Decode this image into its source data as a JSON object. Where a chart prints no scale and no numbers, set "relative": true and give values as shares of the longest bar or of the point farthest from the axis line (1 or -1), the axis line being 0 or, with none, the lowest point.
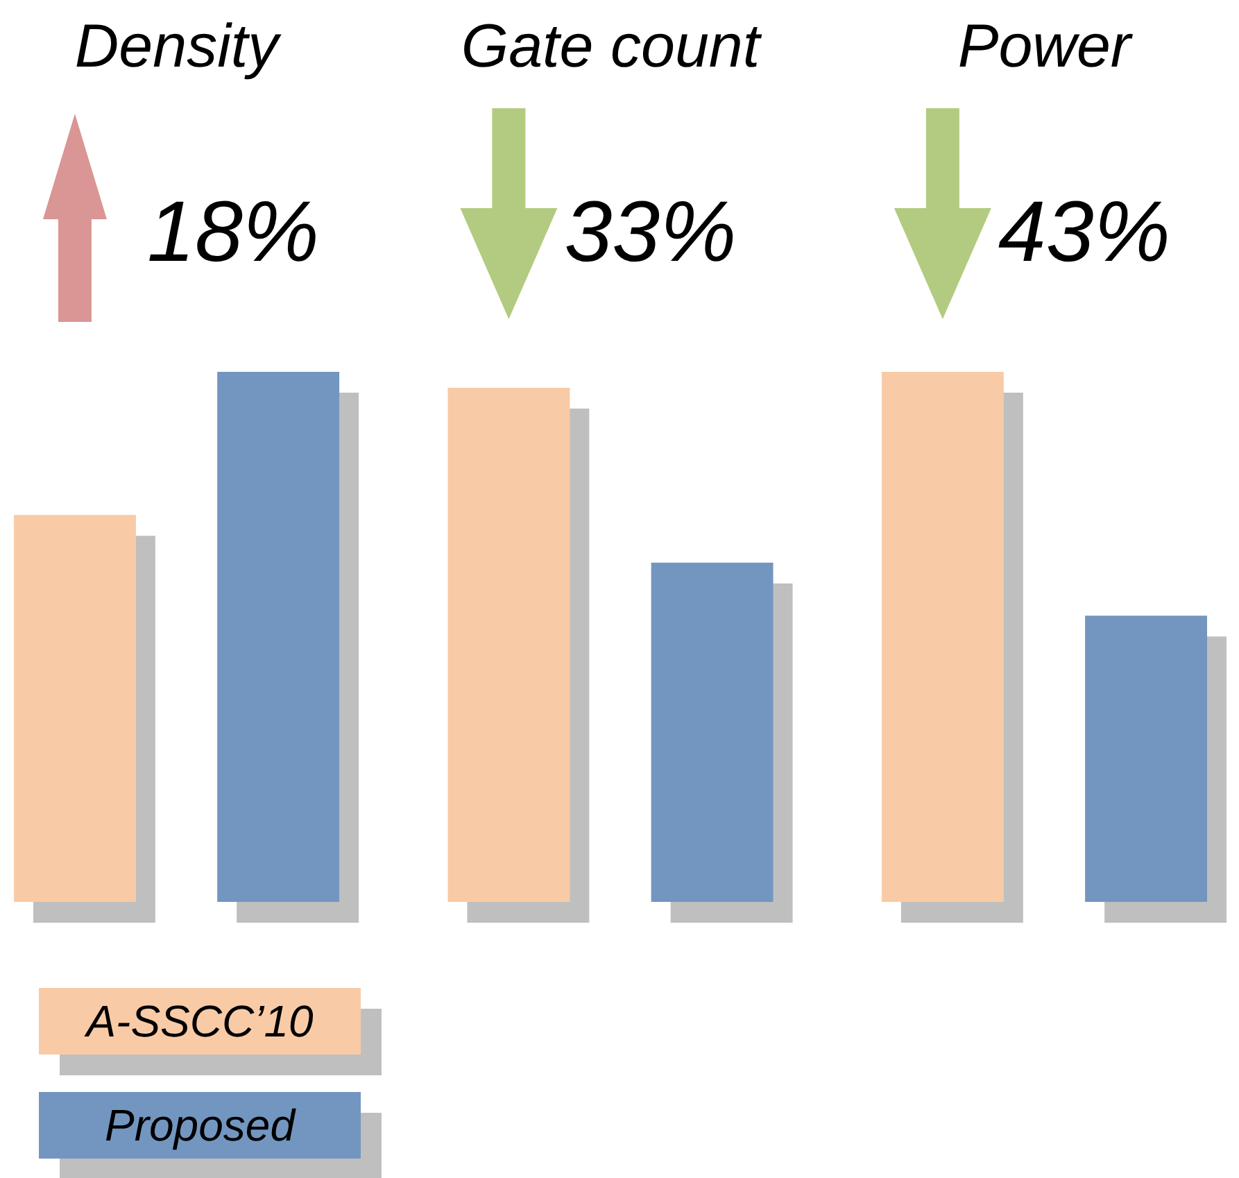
{
  "chart_data": {
    "type": "bar",
    "relative": true,
    "categories": [
      "Density",
      "Gate count",
      "Power"
    ],
    "series": [
      {
        "name": "A-SSCC’10",
        "color": "#f8cba6",
        "values": [
          0.73,
          0.97,
          1.0
        ]
      },
      {
        "name": "Proposed",
        "color": "#7396c0",
        "values": [
          1.0,
          0.64,
          0.54
        ]
      }
    ],
    "annotations": [
      "18%",
      "33%",
      "43%"
    ],
    "legend": "bottom left"
  }
}
